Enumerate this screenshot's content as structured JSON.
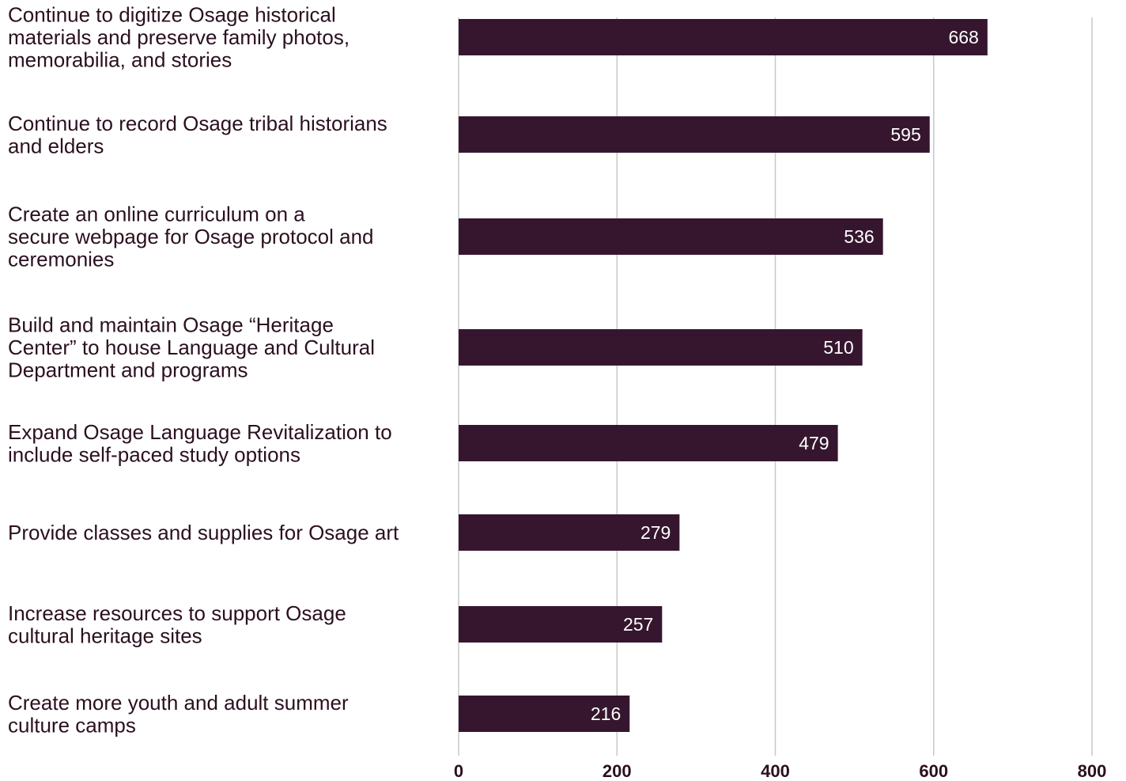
{
  "colors": {
    "bar": "#36162e",
    "text": "#2b1020",
    "grid": "#c8c8c8",
    "value_text": "#ffffff"
  },
  "chart_data": {
    "type": "bar",
    "orientation": "horizontal",
    "categories": [
      "Continue to digitize Osage historical\nmaterials and preserve family photos,\nmemorabilia, and stories",
      "Continue to record Osage tribal historians\nand elders",
      "Create an online curriculum on a\nsecure webpage for Osage protocol and\nceremonies",
      "Build and maintain Osage “Heritage\nCenter” to house Language and Cultural\nDepartment and programs",
      "Expand Osage Language Revitalization to\ninclude self-paced study options",
      "Provide classes and supplies for Osage art",
      "Increase resources to support Osage\ncultural heritage sites",
      "Create more youth and adult summer\nculture camps"
    ],
    "values": [
      668,
      595,
      536,
      510,
      479,
      279,
      257,
      216
    ],
    "xlim": [
      0,
      800
    ],
    "xticks": [
      0,
      200,
      400,
      600,
      800
    ],
    "grid": true,
    "data_labels": true,
    "legend": "none"
  }
}
